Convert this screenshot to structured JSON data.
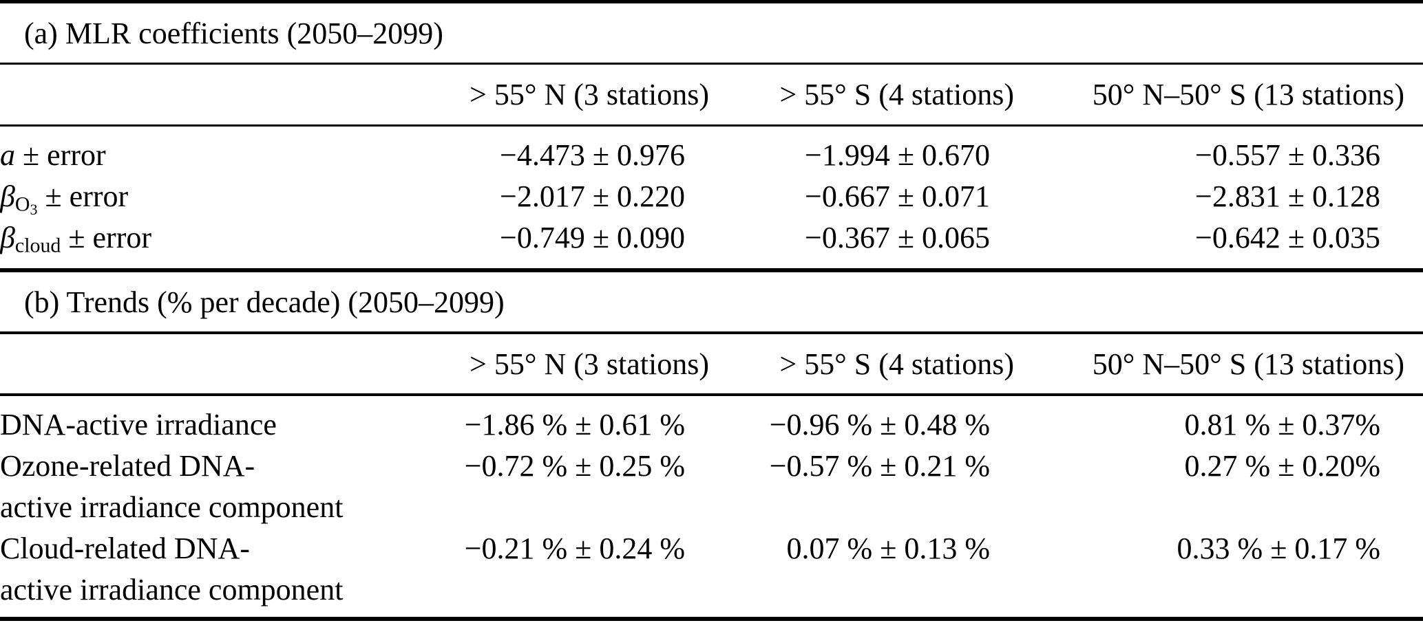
{
  "colors": {
    "background": "#ffffff",
    "text": "#000000",
    "rule": "#000000"
  },
  "columns": [
    "> 55° N (3 stations)",
    "> 55° S (4 stations)",
    "50° N–50° S (13 stations)"
  ],
  "section_a": {
    "title": "(a) MLR coefficients (2050–2099)",
    "rows": [
      {
        "label": {
          "var": "a",
          "sub": "",
          "subsub": "",
          "rest": " ± error"
        },
        "values": [
          "−4.473 ± 0.976",
          "−1.994 ± 0.670",
          "−0.557 ± 0.336"
        ]
      },
      {
        "label": {
          "var": "β",
          "sub": "O",
          "subsub": "3",
          "rest": " ± error"
        },
        "values": [
          "−2.017 ± 0.220",
          "−0.667 ± 0.071",
          "−2.831 ± 0.128"
        ]
      },
      {
        "label": {
          "var": "β",
          "sub": "cloud",
          "subsub": "",
          "rest": " ± error"
        },
        "values": [
          "−0.749 ± 0.090",
          "−0.367 ± 0.065",
          "−0.642 ± 0.035"
        ]
      }
    ]
  },
  "section_b": {
    "title": "(b) Trends (% per decade) (2050–2099)",
    "rows": [
      {
        "label_line1": "DNA-active irradiance",
        "label_line2": "",
        "values": [
          "−1.86 % ± 0.61 %",
          "−0.96 % ± 0.48 %",
          "0.81 % ± 0.37%"
        ]
      },
      {
        "label_line1": "Ozone-related DNA-",
        "label_line2": "active irradiance component",
        "values": [
          "−0.72 % ± 0.25 %",
          "−0.57 % ± 0.21 %",
          "0.27 % ± 0.20%"
        ]
      },
      {
        "label_line1": "Cloud-related DNA-",
        "label_line2": "active irradiance component",
        "values": [
          "−0.21 % ± 0.24 %",
          "0.07 % ± 0.13 %",
          "0.33 % ± 0.17 %"
        ]
      }
    ]
  }
}
